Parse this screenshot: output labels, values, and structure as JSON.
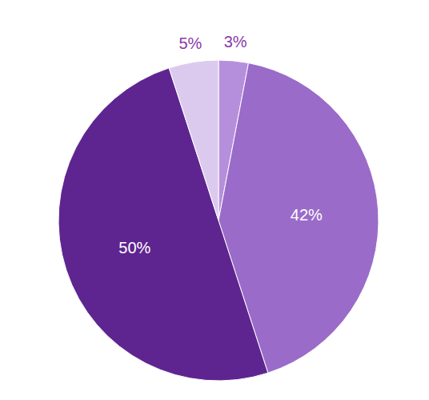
{
  "chart_data": {
    "type": "pie",
    "values": [
      3,
      42,
      50,
      5
    ],
    "value_labels": [
      "3%",
      "42%",
      "50%",
      "5%"
    ],
    "colors": [
      "#b58fdc",
      "#9a6bc9",
      "#5e2590",
      "#dccaee"
    ],
    "data_labels": true
  }
}
